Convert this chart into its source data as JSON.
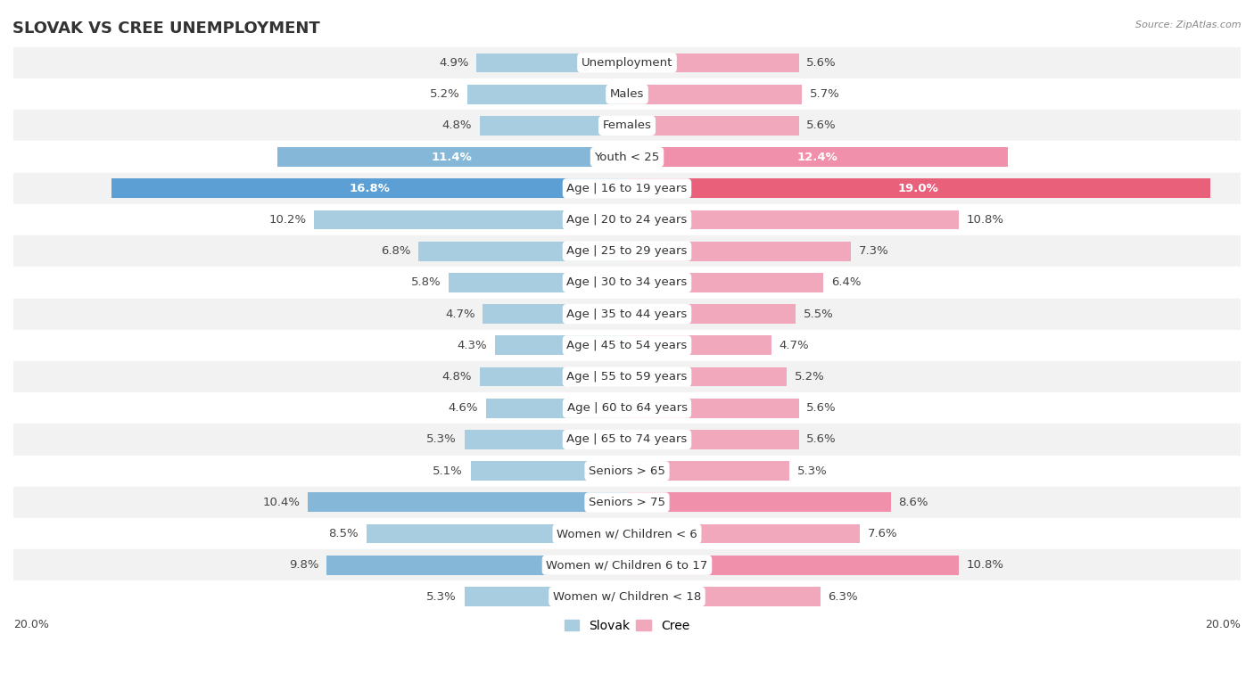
{
  "title": "SLOVAK VS CREE UNEMPLOYMENT",
  "source": "Source: ZipAtlas.com",
  "categories": [
    "Unemployment",
    "Males",
    "Females",
    "Youth < 25",
    "Age | 16 to 19 years",
    "Age | 20 to 24 years",
    "Age | 25 to 29 years",
    "Age | 30 to 34 years",
    "Age | 35 to 44 years",
    "Age | 45 to 54 years",
    "Age | 55 to 59 years",
    "Age | 60 to 64 years",
    "Age | 65 to 74 years",
    "Seniors > 65",
    "Seniors > 75",
    "Women w/ Children < 6",
    "Women w/ Children 6 to 17",
    "Women w/ Children < 18"
  ],
  "slovak_values": [
    4.9,
    5.2,
    4.8,
    11.4,
    16.8,
    10.2,
    6.8,
    5.8,
    4.7,
    4.3,
    4.8,
    4.6,
    5.3,
    5.1,
    10.4,
    8.5,
    9.8,
    5.3
  ],
  "cree_values": [
    5.6,
    5.7,
    5.6,
    12.4,
    19.0,
    10.8,
    7.3,
    6.4,
    5.5,
    4.7,
    5.2,
    5.6,
    5.6,
    5.3,
    8.6,
    7.6,
    10.8,
    6.3
  ],
  "slovak_color_normal": "#a8cce0",
  "cree_color_normal": "#f2a8bc",
  "slovak_color_medium": "#85b8d8",
  "cree_color_medium": "#f090aa",
  "slovak_color_highlight": "#5b9fd4",
  "cree_color_highlight": "#e8607a",
  "max_val": 20.0,
  "row_bg_light": "#f2f2f2",
  "row_bg_dark": "#e8e8e8",
  "label_fontsize": 9.5,
  "title_fontsize": 13,
  "legend_fontsize": 10,
  "highlight_rows": [
    3,
    4
  ],
  "medium_rows": []
}
